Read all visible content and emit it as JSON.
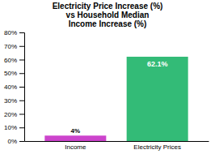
{
  "chart_data": {
    "type": "bar",
    "title": "Electricity Price Increase (%)\nvs Household Median\nIncome Increase (%)",
    "categories": [
      "Income",
      "Electricity Prices"
    ],
    "values": [
      4,
      62.1
    ],
    "value_labels": [
      "4%",
      "62.1%"
    ],
    "colors": [
      "#cc44cc",
      "#33bb77"
    ],
    "data_labels": true,
    "grid": false,
    "ylim": [
      0,
      80
    ],
    "yticks": [
      {
        "value": 0,
        "label": "0%"
      },
      {
        "value": 10,
        "label": "10%"
      },
      {
        "value": 20,
        "label": "20%"
      },
      {
        "value": 30,
        "label": "30%"
      },
      {
        "value": 40,
        "label": "40%"
      },
      {
        "value": 50,
        "label": "50%"
      },
      {
        "value": 60,
        "label": "60%"
      },
      {
        "value": 70,
        "label": "70%"
      },
      {
        "value": 80,
        "label": "80%"
      }
    ]
  }
}
